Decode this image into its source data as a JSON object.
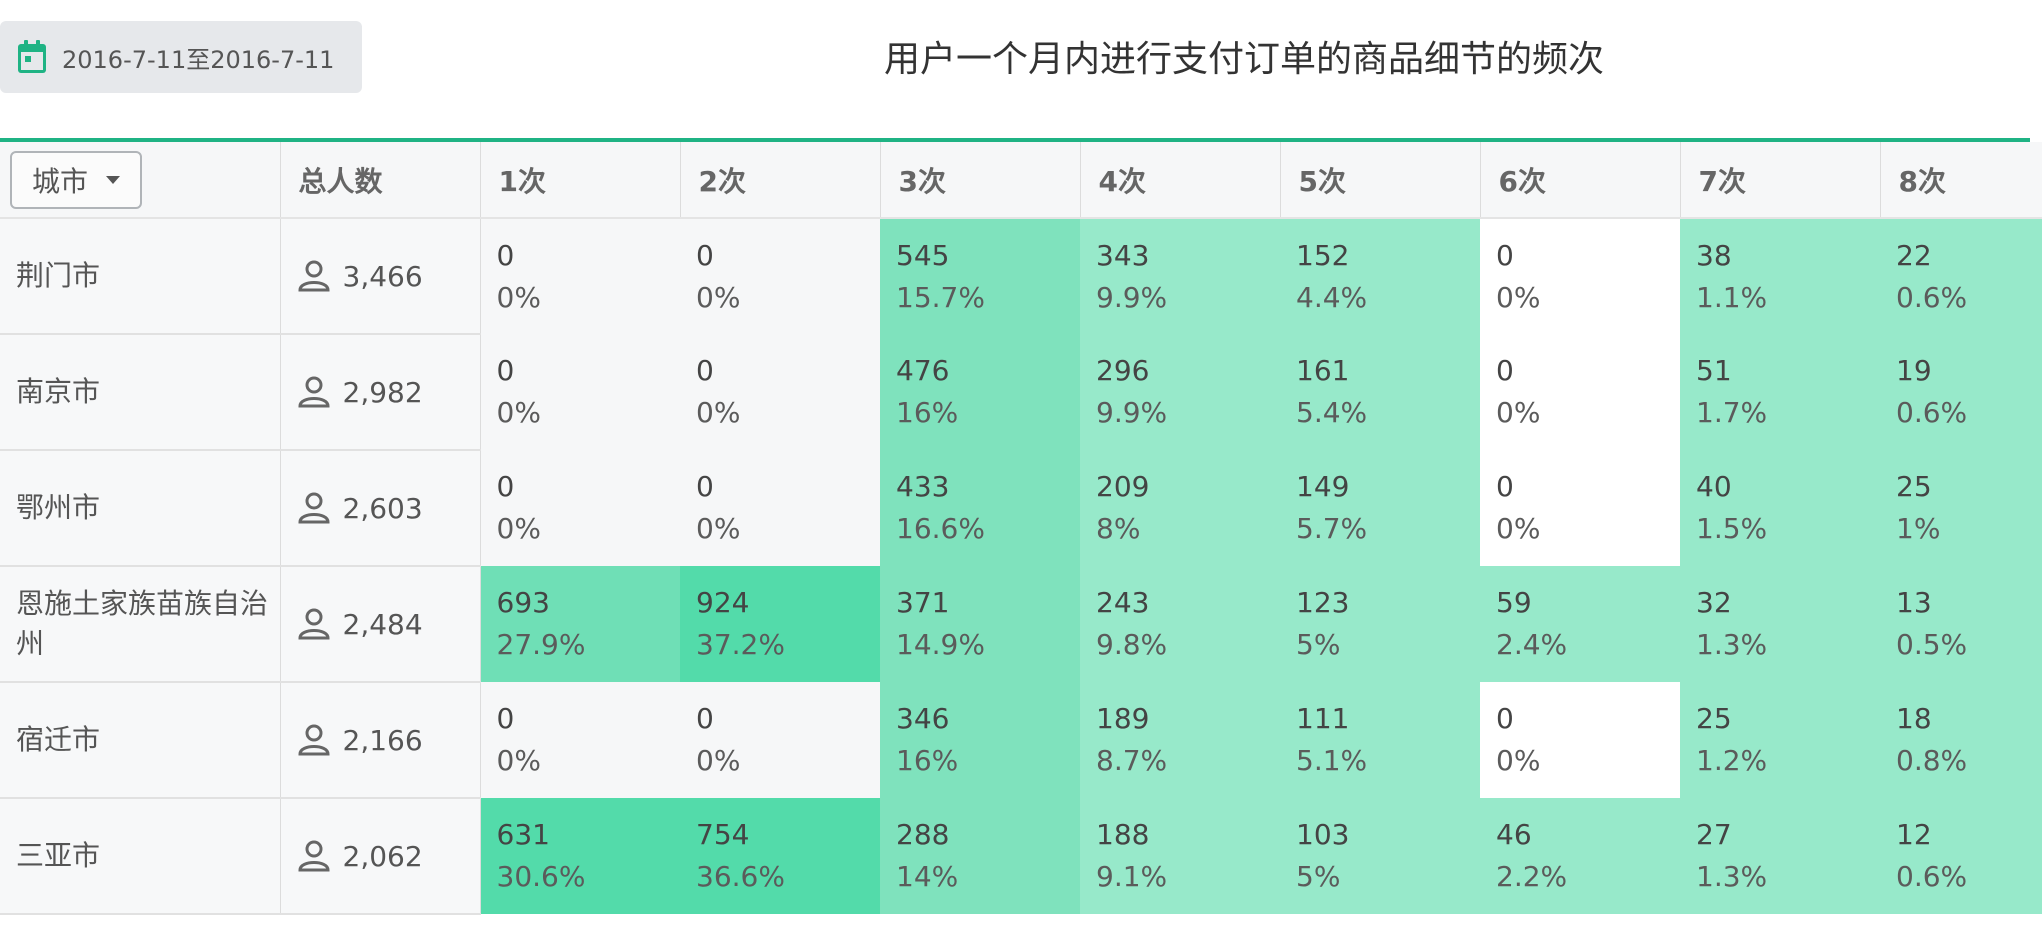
{
  "date_range": "2016-7-11至2016-7-11",
  "title": "用户一个月内进行支付订单的商品细节的频次",
  "city_select_label": "城市",
  "columns": [
    "总人数",
    "1次",
    "2次",
    "3次",
    "4次",
    "5次",
    "6次",
    "7次",
    "8次"
  ],
  "colors": {
    "accent": "#1fb384",
    "empty": "#f6f7f8",
    "light": "#97e9ca",
    "medium": "#7fe2bd",
    "strong": "#6fdfb6",
    "strongest": "#53dbaa"
  },
  "icons": {
    "date": "calendar-icon",
    "total": "person-icon",
    "dropdown": "caret-down-icon"
  },
  "rows": [
    {
      "city": "荆门市",
      "total": "3,466",
      "cells": [
        {
          "v": "0",
          "p": "0%"
        },
        {
          "v": "0",
          "p": "0%"
        },
        {
          "v": "545",
          "p": "15.7%"
        },
        {
          "v": "343",
          "p": "9.9%"
        },
        {
          "v": "152",
          "p": "4.4%"
        },
        {
          "v": "0",
          "p": "0%"
        },
        {
          "v": "38",
          "p": "1.1%"
        },
        {
          "v": "22",
          "p": "0.6%"
        }
      ]
    },
    {
      "city": "南京市",
      "total": "2,982",
      "cells": [
        {
          "v": "0",
          "p": "0%"
        },
        {
          "v": "0",
          "p": "0%"
        },
        {
          "v": "476",
          "p": "16%"
        },
        {
          "v": "296",
          "p": "9.9%"
        },
        {
          "v": "161",
          "p": "5.4%"
        },
        {
          "v": "0",
          "p": "0%"
        },
        {
          "v": "51",
          "p": "1.7%"
        },
        {
          "v": "19",
          "p": "0.6%"
        }
      ]
    },
    {
      "city": "鄂州市",
      "total": "2,603",
      "cells": [
        {
          "v": "0",
          "p": "0%"
        },
        {
          "v": "0",
          "p": "0%"
        },
        {
          "v": "433",
          "p": "16.6%"
        },
        {
          "v": "209",
          "p": "8%"
        },
        {
          "v": "149",
          "p": "5.7%"
        },
        {
          "v": "0",
          "p": "0%"
        },
        {
          "v": "40",
          "p": "1.5%"
        },
        {
          "v": "25",
          "p": "1%"
        }
      ]
    },
    {
      "city": "恩施土家族苗族自治州",
      "total": "2,484",
      "cells": [
        {
          "v": "693",
          "p": "27.9%"
        },
        {
          "v": "924",
          "p": "37.2%"
        },
        {
          "v": "371",
          "p": "14.9%"
        },
        {
          "v": "243",
          "p": "9.8%"
        },
        {
          "v": "123",
          "p": "5%"
        },
        {
          "v": "59",
          "p": "2.4%"
        },
        {
          "v": "32",
          "p": "1.3%"
        },
        {
          "v": "13",
          "p": "0.5%"
        }
      ]
    },
    {
      "city": "宿迁市",
      "total": "2,166",
      "cells": [
        {
          "v": "0",
          "p": "0%"
        },
        {
          "v": "0",
          "p": "0%"
        },
        {
          "v": "346",
          "p": "16%"
        },
        {
          "v": "189",
          "p": "8.7%"
        },
        {
          "v": "111",
          "p": "5.1%"
        },
        {
          "v": "0",
          "p": "0%"
        },
        {
          "v": "25",
          "p": "1.2%"
        },
        {
          "v": "18",
          "p": "0.8%"
        }
      ]
    },
    {
      "city": "三亚市",
      "total": "2,062",
      "cells": [
        {
          "v": "631",
          "p": "30.6%"
        },
        {
          "v": "754",
          "p": "36.6%"
        },
        {
          "v": "288",
          "p": "14%"
        },
        {
          "v": "188",
          "p": "9.1%"
        },
        {
          "v": "103",
          "p": "5%"
        },
        {
          "v": "46",
          "p": "2.2%"
        },
        {
          "v": "27",
          "p": "1.3%"
        },
        {
          "v": "12",
          "p": "0.6%"
        }
      ]
    }
  ]
}
